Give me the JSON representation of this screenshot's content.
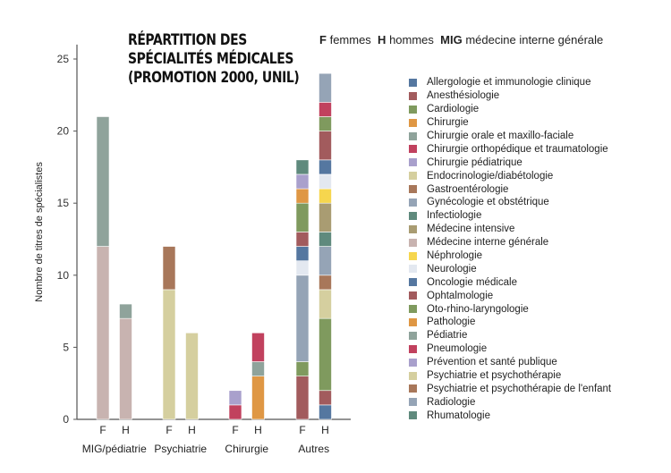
{
  "title_lines": [
    "RÉPARTITION DES",
    "SPÉCIALITÉS MÉDICALES",
    "(PROMOTION 2000, UNIL)"
  ],
  "key": {
    "f_abbr": "F",
    "f_text": "femmes",
    "h_abbr": "H",
    "h_text": "hommes",
    "mig_abbr": "MIG",
    "mig_text": "médecine interne générale"
  },
  "chart_data": {
    "type": "bar",
    "stacked": true,
    "title": "RÉPARTITION DES SPÉCIALITÉS MÉDICALES (PROMOTION 2000, UNIL)",
    "ylabel": "Nombre de titres de spécialistes",
    "xlabel": "",
    "ylim": [
      0,
      26
    ],
    "yticks": [
      0,
      5,
      10,
      15,
      20,
      25
    ],
    "legend_position": "right",
    "specialties": [
      {
        "name": "Allergologie et immunologie clinique",
        "color": "#5577a0"
      },
      {
        "name": "Anesthésiologie",
        "color": "#a25b5d"
      },
      {
        "name": "Cardiologie",
        "color": "#7f9a5e"
      },
      {
        "name": "Chirurgie",
        "color": "#df9744"
      },
      {
        "name": "Chirurgie orale et maxillo-faciale",
        "color": "#8fa39b"
      },
      {
        "name": "Chirurgie orthopédique et traumatologie",
        "color": "#c1415e"
      },
      {
        "name": "Chirurgie pédiatrique",
        "color": "#a9a0cc"
      },
      {
        "name": "Endocrinologie/diabétologie",
        "color": "#d5cf9f"
      },
      {
        "name": "Gastroentérologie",
        "color": "#a8775a"
      },
      {
        "name": "Gynécologie et obstétrique",
        "color": "#95a4b6"
      },
      {
        "name": "Infectiologie",
        "color": "#5f8a7d"
      },
      {
        "name": "Médecine intensive",
        "color": "#a99c72"
      },
      {
        "name": "Médecine interne générale",
        "color": "#c8b3b0"
      },
      {
        "name": "Néphrologie",
        "color": "#f6d64e"
      },
      {
        "name": "Neurologie",
        "color": "#e3e8f0"
      },
      {
        "name": "Oncologie médicale",
        "color": "#5577a0"
      },
      {
        "name": "Ophtalmologie",
        "color": "#a25b5d"
      },
      {
        "name": "Oto-rhino-laryngologie",
        "color": "#7f9a5e"
      },
      {
        "name": "Pathologie",
        "color": "#df9744"
      },
      {
        "name": "Pédiatrie",
        "color": "#8fa39b"
      },
      {
        "name": "Pneumologie",
        "color": "#c1415e"
      },
      {
        "name": "Prévention et santé publique",
        "color": "#a9a0cc"
      },
      {
        "name": "Psychiatrie et psychothérapie",
        "color": "#d5cf9f"
      },
      {
        "name": "Psychiatrie et psychothérapie de l'enfant",
        "color": "#a8775a"
      },
      {
        "name": "Radiologie",
        "color": "#95a4b6"
      },
      {
        "name": "Rhumatologie",
        "color": "#5f8a7d"
      }
    ],
    "groups": [
      {
        "label": "MIG/pédiatrie",
        "bars": [
          {
            "label": "F",
            "segments": [
              {
                "specialty": 12,
                "value": 12
              },
              {
                "specialty": 19,
                "value": 9
              }
            ]
          },
          {
            "label": "H",
            "segments": [
              {
                "specialty": 12,
                "value": 7
              },
              {
                "specialty": 19,
                "value": 1
              }
            ]
          }
        ]
      },
      {
        "label": "Psychiatrie",
        "bars": [
          {
            "label": "F",
            "segments": [
              {
                "specialty": 22,
                "value": 9
              },
              {
                "specialty": 23,
                "value": 3
              }
            ]
          },
          {
            "label": "H",
            "segments": [
              {
                "specialty": 22,
                "value": 6
              }
            ]
          }
        ]
      },
      {
        "label": "Chirurgie",
        "bars": [
          {
            "label": "F",
            "segments": [
              {
                "specialty": 5,
                "value": 1
              },
              {
                "specialty": 6,
                "value": 1
              }
            ]
          },
          {
            "label": "H",
            "segments": [
              {
                "specialty": 3,
                "value": 3
              },
              {
                "specialty": 4,
                "value": 1
              },
              {
                "specialty": 5,
                "value": 2
              }
            ]
          }
        ]
      },
      {
        "label": "Autres",
        "bars": [
          {
            "label": "F",
            "segments": [
              {
                "specialty": 1,
                "value": 3
              },
              {
                "specialty": 2,
                "value": 1
              },
              {
                "specialty": 9,
                "value": 6
              },
              {
                "specialty": 14,
                "value": 1
              },
              {
                "specialty": 15,
                "value": 1
              },
              {
                "specialty": 16,
                "value": 1
              },
              {
                "specialty": 17,
                "value": 2
              },
              {
                "specialty": 18,
                "value": 1
              },
              {
                "specialty": 21,
                "value": 1
              },
              {
                "specialty": 25,
                "value": 1
              }
            ]
          },
          {
            "label": "H",
            "segments": [
              {
                "specialty": 0,
                "value": 1
              },
              {
                "specialty": 1,
                "value": 1
              },
              {
                "specialty": 2,
                "value": 5
              },
              {
                "specialty": 7,
                "value": 2
              },
              {
                "specialty": 8,
                "value": 1
              },
              {
                "specialty": 9,
                "value": 2
              },
              {
                "specialty": 10,
                "value": 1
              },
              {
                "specialty": 11,
                "value": 2
              },
              {
                "specialty": 13,
                "value": 1
              },
              {
                "specialty": 14,
                "value": 1
              },
              {
                "specialty": 15,
                "value": 1
              },
              {
                "specialty": 16,
                "value": 2
              },
              {
                "specialty": 17,
                "value": 1
              },
              {
                "specialty": 20,
                "value": 1
              },
              {
                "specialty": 24,
                "value": 2
              }
            ]
          }
        ]
      }
    ]
  }
}
